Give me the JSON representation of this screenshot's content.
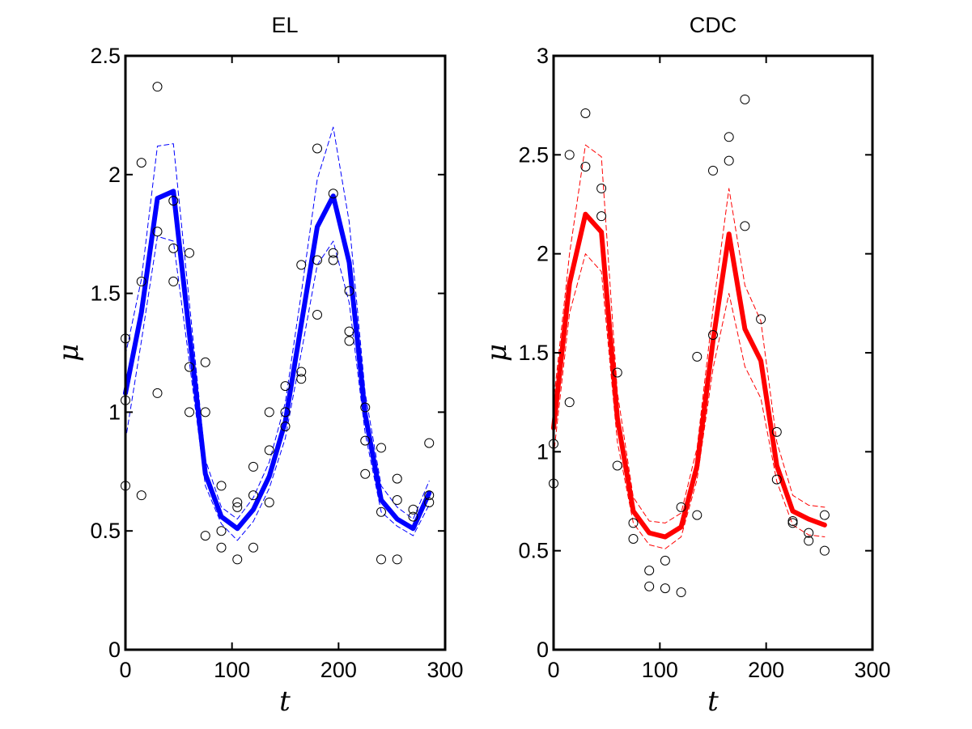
{
  "chart_data": [
    {
      "type": "line",
      "title": "EL",
      "xlabel": "t",
      "ylabel": "μ",
      "xlim": [
        0,
        300
      ],
      "ylim": [
        0,
        2.5
      ],
      "xticks": [
        0,
        100,
        200,
        300
      ],
      "yticks": [
        0,
        0.5,
        1,
        1.5,
        2,
        2.5
      ],
      "xtick_labels": [
        "0",
        "100",
        "200",
        "300"
      ],
      "ytick_labels": [
        "0",
        "0.5",
        "1",
        "1.5",
        "2",
        "2.5"
      ],
      "color": "#0000ff",
      "grid": false,
      "series": [
        {
          "style": "solid-thick",
          "x": [
            0,
            15,
            30,
            45,
            60,
            75,
            90,
            105,
            120,
            135,
            150,
            165,
            180,
            195,
            210,
            225,
            240,
            255,
            270,
            285
          ],
          "y": [
            1.08,
            1.42,
            1.9,
            1.93,
            1.33,
            0.74,
            0.56,
            0.51,
            0.59,
            0.73,
            0.96,
            1.37,
            1.78,
            1.91,
            1.63,
            0.99,
            0.63,
            0.55,
            0.51,
            0.66
          ]
        },
        {
          "style": "dashed-upper",
          "x": [
            0,
            15,
            30,
            45,
            60,
            75,
            90,
            105,
            120,
            135,
            150,
            165,
            180,
            195,
            210,
            225,
            240,
            255,
            270,
            285
          ],
          "y": [
            1.24,
            1.56,
            2.12,
            2.13,
            1.46,
            0.8,
            0.6,
            0.55,
            0.64,
            0.79,
            1.04,
            1.5,
            1.98,
            2.2,
            1.8,
            1.08,
            0.69,
            0.6,
            0.55,
            0.71
          ]
        },
        {
          "style": "dashed-lower",
          "x": [
            0,
            15,
            30,
            45,
            60,
            75,
            90,
            105,
            120,
            135,
            150,
            165,
            180,
            195,
            210,
            225,
            240,
            255,
            270,
            285
          ],
          "y": [
            0.88,
            1.3,
            1.74,
            1.72,
            1.21,
            0.69,
            0.53,
            0.46,
            0.54,
            0.68,
            0.89,
            1.25,
            1.62,
            1.72,
            1.46,
            0.91,
            0.58,
            0.52,
            0.48,
            0.61
          ]
        },
        {
          "style": "scatter-circles",
          "x": [
            0,
            0,
            0,
            15,
            15,
            15,
            30,
            30,
            30,
            45,
            45,
            45,
            60,
            60,
            60,
            75,
            75,
            75,
            90,
            90,
            90,
            105,
            105,
            105,
            120,
            120,
            120,
            135,
            135,
            135,
            150,
            150,
            150,
            165,
            165,
            165,
            180,
            180,
            180,
            195,
            195,
            195,
            210,
            210,
            210,
            225,
            225,
            225,
            240,
            240,
            240,
            255,
            255,
            255,
            270,
            270,
            285,
            285,
            285
          ],
          "y": [
            1.31,
            1.05,
            0.69,
            2.05,
            1.55,
            0.65,
            2.37,
            1.76,
            1.08,
            1.89,
            1.69,
            1.55,
            1.67,
            1.19,
            1.0,
            1.21,
            1.0,
            0.48,
            0.69,
            0.5,
            0.43,
            0.62,
            0.6,
            0.38,
            0.77,
            0.65,
            0.43,
            1.0,
            0.84,
            0.62,
            1.11,
            1.0,
            0.94,
            1.62,
            1.17,
            1.14,
            2.11,
            1.64,
            1.41,
            1.92,
            1.67,
            1.64,
            1.51,
            1.34,
            1.3,
            1.02,
            0.88,
            0.74,
            0.85,
            0.58,
            0.38,
            0.72,
            0.63,
            0.38,
            0.59,
            0.56,
            0.87,
            0.65,
            0.62
          ]
        }
      ]
    },
    {
      "type": "line",
      "title": "CDC",
      "xlabel": "t",
      "ylabel": "μ",
      "xlim": [
        0,
        300
      ],
      "ylim": [
        0,
        3
      ],
      "xticks": [
        0,
        100,
        200,
        300
      ],
      "yticks": [
        0,
        0.5,
        1,
        1.5,
        2,
        2.5,
        3
      ],
      "xtick_labels": [
        "0",
        "100",
        "200",
        "300"
      ],
      "ytick_labels": [
        "0",
        "0.5",
        "1",
        "1.5",
        "2",
        "2.5",
        "3"
      ],
      "color": "#ff0000",
      "grid": false,
      "series": [
        {
          "style": "solid-thick",
          "x": [
            0,
            15,
            30,
            45,
            60,
            75,
            90,
            105,
            120,
            135,
            150,
            165,
            180,
            195,
            210,
            225,
            240,
            255
          ],
          "y": [
            1.12,
            1.85,
            2.2,
            2.11,
            1.17,
            0.7,
            0.59,
            0.57,
            0.62,
            0.93,
            1.56,
            2.1,
            1.62,
            1.46,
            0.93,
            0.7,
            0.66,
            0.63
          ]
        },
        {
          "style": "dashed-upper",
          "x": [
            0,
            15,
            30,
            45,
            60,
            75,
            90,
            105,
            120,
            135,
            150,
            165,
            180,
            195,
            210,
            225,
            240,
            255
          ],
          "y": [
            1.25,
            2.0,
            2.55,
            2.49,
            1.3,
            0.77,
            0.65,
            0.64,
            0.69,
            1.02,
            1.72,
            2.33,
            1.84,
            1.66,
            1.05,
            0.78,
            0.73,
            0.72
          ]
        },
        {
          "style": "dashed-lower",
          "x": [
            0,
            15,
            30,
            45,
            60,
            75,
            90,
            105,
            120,
            135,
            150,
            165,
            180,
            195,
            210,
            225,
            240,
            255
          ],
          "y": [
            0.98,
            1.7,
            2.0,
            1.91,
            1.05,
            0.64,
            0.53,
            0.51,
            0.57,
            0.86,
            1.42,
            1.8,
            1.43,
            1.27,
            0.85,
            0.63,
            0.58,
            0.57
          ]
        },
        {
          "style": "scatter-circles",
          "x": [
            0,
            0,
            15,
            15,
            30,
            30,
            45,
            45,
            60,
            60,
            75,
            75,
            90,
            90,
            105,
            105,
            120,
            120,
            135,
            135,
            150,
            150,
            165,
            165,
            180,
            180,
            195,
            210,
            210,
            225,
            225,
            240,
            240,
            255,
            255
          ],
          "y": [
            1.04,
            0.84,
            2.5,
            1.25,
            2.71,
            2.44,
            2.33,
            2.19,
            1.4,
            0.93,
            0.64,
            0.56,
            0.4,
            0.32,
            0.45,
            0.31,
            0.72,
            0.29,
            1.48,
            0.68,
            2.42,
            1.59,
            2.59,
            2.47,
            2.78,
            2.14,
            1.67,
            1.1,
            0.86,
            0.65,
            0.64,
            0.59,
            0.55,
            0.68,
            0.5
          ]
        }
      ]
    }
  ]
}
